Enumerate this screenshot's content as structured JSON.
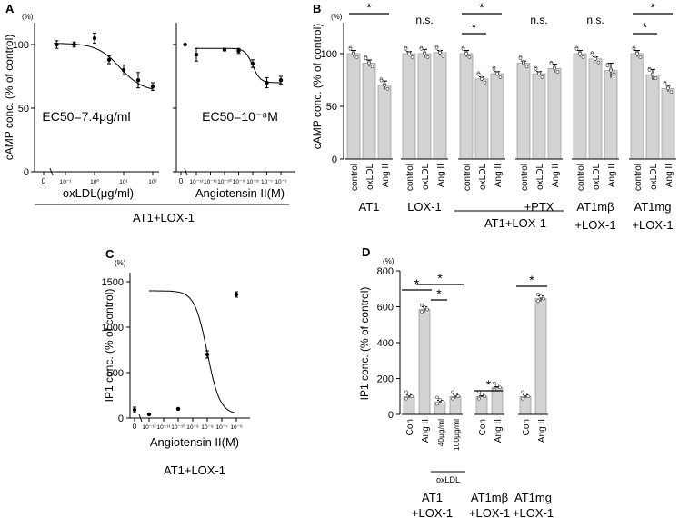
{
  "panels": {
    "A": {
      "label": "A",
      "ylabel": "cAMP conc. (% of control)",
      "unit": "(%)",
      "yticks": [
        "0",
        "50",
        "100"
      ],
      "left": {
        "xticks": [
          "0",
          "10⁻¹",
          "10⁰",
          "10¹",
          "10²"
        ],
        "xlabel": "oxLDL(μg/ml)",
        "annotation": "EC50=7.4μg/ml"
      },
      "right": {
        "xticks": [
          "0",
          "10⁻¹²",
          "10⁻¹¹",
          "10⁻¹⁰",
          "10⁻⁹",
          "10⁻⁸",
          "10⁻⁷",
          "10⁻⁶"
        ],
        "xlabel": "Angiotensin II(M)",
        "annotation": "EC50=10⁻⁸M"
      },
      "group_label": "AT1+LOX-1"
    },
    "B": {
      "label": "B",
      "ylabel": "cAMP conc. (% of control)",
      "unit": "(%)",
      "yticks": [
        "0",
        "50",
        "100"
      ],
      "bar_labels": [
        "control",
        "oxLDL",
        "Ang II"
      ],
      "groups": [
        {
          "line1": "AT1",
          "line2": "",
          "sig": "*"
        },
        {
          "line1": "LOX-1",
          "line2": "",
          "sig": "n.s."
        },
        {
          "line1": "",
          "line2": "",
          "sig": "*"
        },
        {
          "line1": "+PTX",
          "line2": "",
          "sig": "n.s."
        },
        {
          "line1": "AT1mβ",
          "line2": "+LOX-1",
          "sig": "n.s."
        },
        {
          "line1": "AT1mg",
          "line2": "+LOX-1",
          "sig": "*"
        }
      ],
      "shared_label": "AT1+LOX-1"
    },
    "C": {
      "label": "C",
      "ylabel": "IP1 conc. (% of control)",
      "unit": "(%)",
      "yticks": [
        "0",
        "500",
        "1000",
        "1500"
      ],
      "xticks": [
        "0",
        "10⁻¹²",
        "10⁻¹¹",
        "10⁻¹⁰",
        "10⁻⁹",
        "10⁻⁸",
        "10⁻⁷",
        "10⁻⁶"
      ],
      "xlabel": "Angiotensin II(M)",
      "group_label": "AT1+LOX-1"
    },
    "D": {
      "label": "D",
      "ylabel": "IP1 conc. (% of control)",
      "unit": "(%)",
      "yticks": [
        "0",
        "200",
        "400",
        "600",
        "800"
      ],
      "bar_labels": [
        "Con",
        "Ang II",
        "40μg/ml",
        "100μg/ml",
        "Con",
        "Ang II",
        "Con",
        "Ang II"
      ],
      "oxldl_label": "oxLDL",
      "groups": [
        {
          "line1": "AT1",
          "line2": "+LOX-1"
        },
        {
          "line1": "AT1mβ",
          "line2": "+LOX-1"
        },
        {
          "line1": "AT1mg",
          "line2": "+LOX-1"
        }
      ],
      "sig": "*"
    }
  },
  "chart_data": [
    {
      "type": "scatter",
      "panel": "A-left",
      "title": "EC50=7.4μg/ml",
      "xlabel": "oxLDL(μg/ml)",
      "ylabel": "cAMP conc. (% of control)",
      "x_log10": [
        -1.3,
        -0.7,
        0.0,
        0.5,
        1.0,
        1.5,
        2.0
      ],
      "y": [
        100,
        100,
        105,
        88,
        80,
        72,
        67
      ],
      "err": [
        3,
        2,
        4,
        3,
        4,
        6,
        3
      ],
      "ylim": [
        0,
        110
      ]
    },
    {
      "type": "scatter",
      "panel": "A-right",
      "title": "EC50=10⁻⁸M",
      "xlabel": "Angiotensin II(M)",
      "ylabel": "cAMP conc. (% of control)",
      "x_log10": [
        -12.8,
        -12.0,
        -10.0,
        -9.0,
        -8.0,
        -7.0,
        -6.0
      ],
      "y": [
        100,
        92,
        96,
        95,
        85,
        70,
        72
      ],
      "err": [
        0,
        5,
        1,
        2,
        3,
        4,
        3
      ],
      "ylim": [
        0,
        110
      ]
    },
    {
      "type": "bar",
      "panel": "B",
      "ylabel": "cAMP conc. (% of control)",
      "ylim": [
        0,
        110
      ],
      "categories": [
        "control",
        "oxLDL",
        "Ang II"
      ],
      "groups": [
        "AT1",
        "LOX-1",
        "AT1+LOX-1",
        "AT1+LOX-1 +PTX",
        "AT1mβ+LOX-1",
        "AT1mg+LOX-1"
      ],
      "values": [
        [
          100,
          91,
          70
        ],
        [
          100,
          100,
          101
        ],
        [
          100,
          76,
          81
        ],
        [
          91,
          81,
          86
        ],
        [
          100,
          95,
          84
        ],
        [
          100,
          80,
          67
        ]
      ],
      "err": [
        [
          3,
          3,
          4
        ],
        [
          2,
          4,
          2
        ],
        [
          3,
          2,
          2
        ],
        [
          2,
          2,
          4
        ],
        [
          3,
          2,
          7
        ],
        [
          3,
          5,
          3
        ]
      ]
    },
    {
      "type": "scatter",
      "panel": "C",
      "xlabel": "Angiotensin II(M)",
      "ylabel": "IP1 conc. (% of control)",
      "x_log10": [
        -13.0,
        -12.0,
        -10.0,
        -8.0,
        -6.0
      ],
      "y": [
        90,
        40,
        100,
        700,
        1360
      ],
      "err": [
        30,
        5,
        10,
        40,
        30
      ],
      "ylim": [
        0,
        1500
      ]
    },
    {
      "type": "bar",
      "panel": "D",
      "ylabel": "IP1 conc. (% of control)",
      "ylim": [
        0,
        800
      ],
      "categories": [
        "Con",
        "Ang II",
        "oxLDL 40μg/ml",
        "oxLDL 100μg/ml",
        "Con",
        "Ang II",
        "Con",
        "Ang II"
      ],
      "groups": [
        "AT1+LOX-1",
        "AT1mβ+LOX-1",
        "AT1mg+LOX-1"
      ],
      "values": [
        100,
        585,
        70,
        100,
        100,
        150,
        100,
        645
      ],
      "err": [
        8,
        15,
        8,
        12,
        3,
        4,
        10,
        15
      ]
    }
  ]
}
